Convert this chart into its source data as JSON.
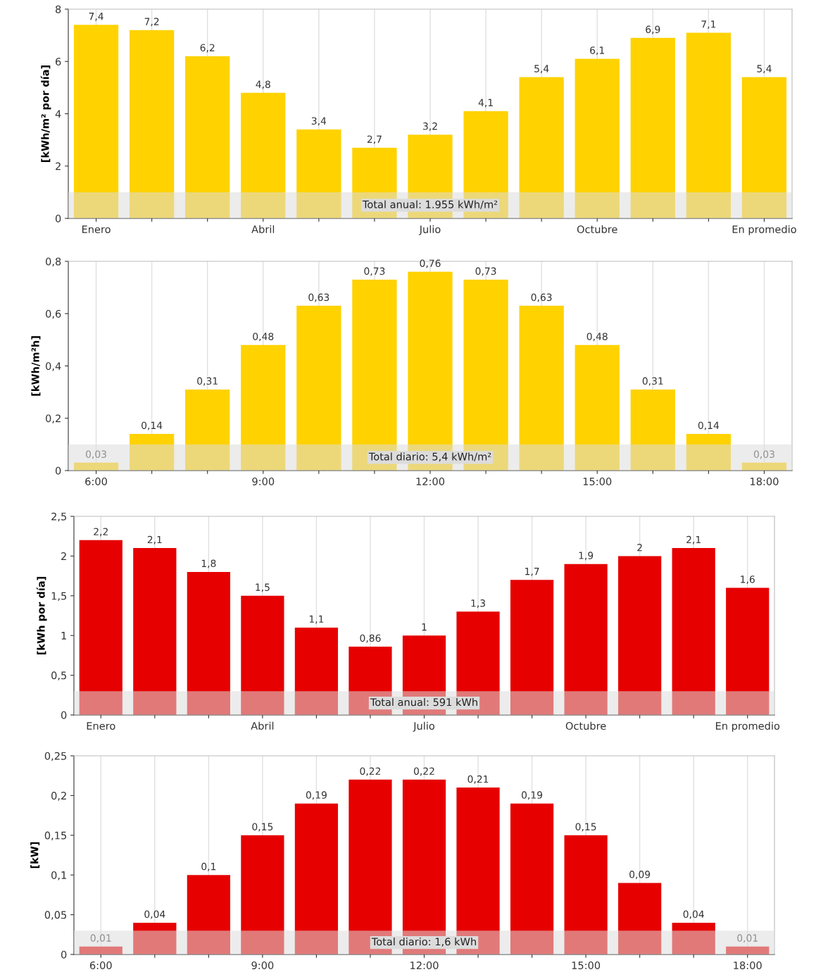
{
  "chart_data": [
    {
      "type": "bar",
      "ylabel": "[kWh/m² por día]",
      "categories": [
        "Enero",
        null,
        null,
        "Abril",
        null,
        null,
        "Julio",
        null,
        null,
        "Octubre",
        null,
        null,
        "En promedio"
      ],
      "values": [
        7.4,
        7.2,
        6.2,
        4.8,
        3.4,
        2.7,
        3.2,
        4.1,
        5.4,
        6.1,
        6.9,
        7.1,
        5.4
      ],
      "value_labels": [
        "7,4",
        "7,2",
        "6,2",
        "4,8",
        "3,4",
        "2,7",
        "3,2",
        "4,1",
        "5,4",
        "6,1",
        "6,9",
        "7,1",
        "5,4"
      ],
      "color": "#ffd200",
      "ylim": [
        0,
        8
      ],
      "yticks": [
        0,
        2,
        4,
        6,
        8
      ],
      "grid": "x",
      "bands": [
        {
          "axis": "y",
          "from": 0,
          "to": 1,
          "label": "Total anual: 1.955 kWh/m²",
          "color": "#dcdcdc"
        }
      ]
    },
    {
      "type": "bar",
      "ylabel": "[kWh/m²h]",
      "categories": [
        "6:00",
        null,
        null,
        "9:00",
        null,
        null,
        "12:00",
        null,
        null,
        "15:00",
        null,
        null,
        "18:00"
      ],
      "values": [
        0.03,
        0.14,
        0.31,
        0.48,
        0.63,
        0.73,
        0.76,
        0.73,
        0.63,
        0.48,
        0.31,
        0.14,
        0.03
      ],
      "value_labels": [
        "0,03",
        "0,14",
        "0,31",
        "0,48",
        "0,63",
        "0,73",
        "0,76",
        "0,73",
        "0,63",
        "0,48",
        "0,31",
        "0,14",
        "0,03"
      ],
      "color": "#ffd200",
      "ylim": [
        0,
        0.8
      ],
      "yticks": [
        0,
        {
          "value": 0.2,
          "label": "0,2"
        },
        {
          "value": 0.4,
          "label": "0,4"
        },
        {
          "value": 0.6,
          "label": "0,6"
        },
        {
          "value": 0.8,
          "label": "0,8"
        }
      ],
      "grid": "x",
      "bands": [
        {
          "axis": "y",
          "from": 0,
          "to": 0.1,
          "label": "Total diario: 5,4 kWh/m²",
          "color": "#dcdcdc"
        }
      ]
    },
    {
      "type": "bar",
      "ylabel": "[kWh por día]",
      "categories": [
        "Enero",
        null,
        null,
        "Abril",
        null,
        null,
        "Julio",
        null,
        null,
        "Octubre",
        null,
        null,
        "En promedio"
      ],
      "values": [
        2.2,
        2.1,
        1.8,
        1.5,
        1.1,
        0.86,
        1,
        1.3,
        1.7,
        1.9,
        2,
        2.1,
        1.6
      ],
      "value_labels": [
        "2,2",
        "2,1",
        "1,8",
        "1,5",
        "1,1",
        "0,86",
        "1",
        "1,3",
        "1,7",
        "1,9",
        "2",
        "2,1",
        "1,6"
      ],
      "color": "#e60000",
      "ylim": [
        0,
        2.5
      ],
      "yticks": [
        0,
        {
          "value": 0.5,
          "label": "0,5"
        },
        1,
        {
          "value": 1.5,
          "label": "1,5"
        },
        2,
        {
          "value": 2.5,
          "label": "2,5"
        }
      ],
      "grid": "x",
      "bands": [
        {
          "axis": "y",
          "from": 0,
          "to": 0.3,
          "label": "Total anual: 591 kWh",
          "color": "#dcdcdc"
        }
      ]
    },
    {
      "type": "bar",
      "ylabel": "[kW]",
      "categories": [
        "6:00",
        null,
        null,
        "9:00",
        null,
        null,
        "12:00",
        null,
        null,
        "15:00",
        null,
        null,
        "18:00"
      ],
      "values": [
        0.01,
        0.04,
        0.1,
        0.15,
        0.19,
        0.22,
        0.22,
        0.21,
        0.19,
        0.15,
        0.09,
        0.04,
        0.01
      ],
      "value_labels": [
        "0,01",
        "0,04",
        "0,1",
        "0,15",
        "0,19",
        "0,22",
        "0,22",
        "0,21",
        "0,19",
        "0,15",
        "0,09",
        "0,04",
        "0,01"
      ],
      "color": "#e60000",
      "ylim": [
        0,
        0.25
      ],
      "yticks": [
        0,
        {
          "value": 0.05,
          "label": "0,05"
        },
        {
          "value": 0.1,
          "label": "0,1"
        },
        {
          "value": 0.15,
          "label": "0,15"
        },
        {
          "value": 0.2,
          "label": "0,2"
        },
        {
          "value": 0.25,
          "label": "0,25"
        }
      ],
      "grid": "x",
      "bands": [
        {
          "axis": "y",
          "from": 0,
          "to": 0.03,
          "label": "Total diario: 1,6 kWh",
          "color": "#dcdcdc"
        }
      ]
    }
  ]
}
